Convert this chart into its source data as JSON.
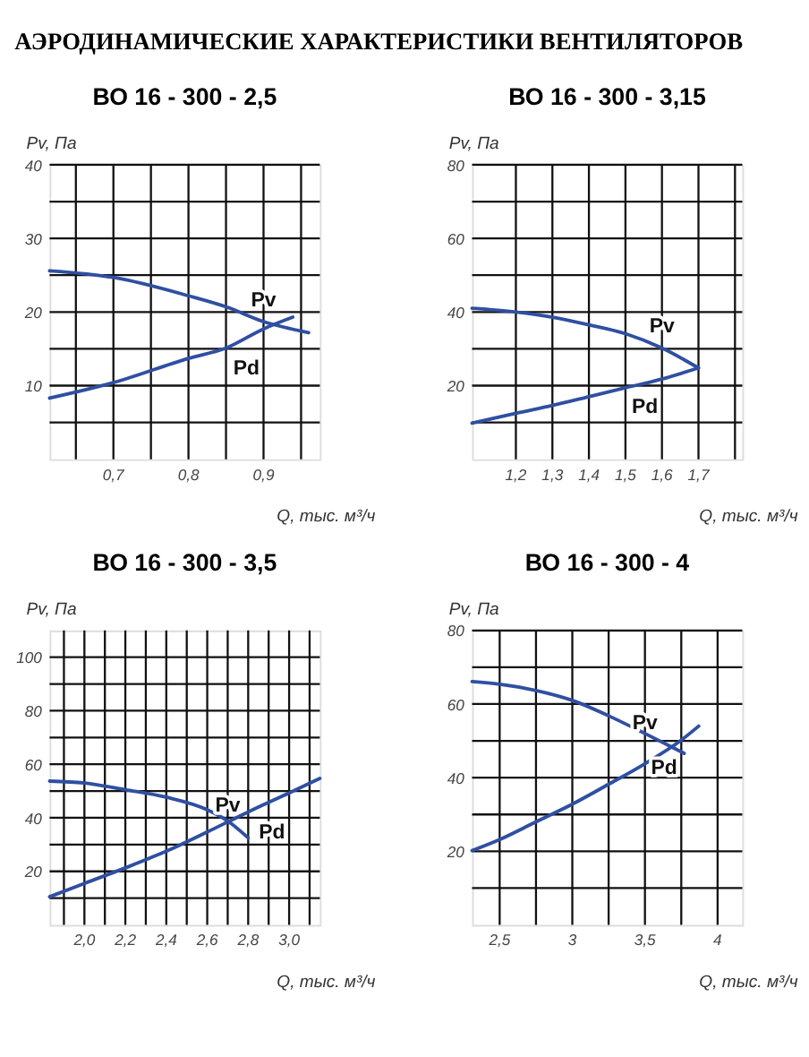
{
  "chart_data": [
    {
      "type": "line",
      "title": "ВО 16 - 300 - 2,5",
      "xlabel": "Q, тыс. м³/ч",
      "ylabel": "Pv, Па",
      "grid": true,
      "legend": false,
      "marker": "none",
      "line_style": "solid",
      "xlim": [
        0.615,
        0.975
      ],
      "ylim": [
        0,
        40
      ],
      "xticks": [
        {
          "value": 0.65,
          "label": null
        },
        {
          "value": 0.7,
          "label": "0,7"
        },
        {
          "value": 0.75,
          "label": null
        },
        {
          "value": 0.8,
          "label": "0,8"
        },
        {
          "value": 0.85,
          "label": null
        },
        {
          "value": 0.9,
          "label": "0,9"
        },
        {
          "value": 0.95,
          "label": null
        }
      ],
      "yticks": [
        {
          "value": 5,
          "label": null
        },
        10,
        {
          "value": 15,
          "label": null
        },
        20,
        {
          "value": 25,
          "label": null
        },
        30,
        {
          "value": 35,
          "label": null
        },
        40
      ],
      "series": [
        {
          "name": "Pv",
          "color": "#2f4fa2",
          "x": [
            0.615,
            0.7,
            0.8,
            0.85,
            0.9,
            0.96
          ],
          "values": [
            25.6,
            24.7,
            22.2,
            20.7,
            18.7,
            17.2
          ]
        },
        {
          "name": "Pd",
          "color": "#2f4fa2",
          "x": [
            0.615,
            0.7,
            0.8,
            0.85,
            0.9,
            0.939
          ],
          "values": [
            8.3,
            10.4,
            13.7,
            15.1,
            17.7,
            19.3
          ]
        }
      ],
      "annotations": [
        "АЭРОДИНАМИЧЕСКИЕ ХАРАКТЕРИСТИКИ ВЕНТИЛЯТОРОВ"
      ]
    },
    {
      "type": "line",
      "title": "ВО 16 - 300 - 3,15",
      "xlabel": "Q, тыс. м³/ч",
      "ylabel": "Pv, Па",
      "grid": true,
      "legend": false,
      "marker": "none",
      "line_style": "solid",
      "xlim": [
        1.08,
        1.82
      ],
      "ylim": [
        0,
        80
      ],
      "xticks": [
        {
          "value": 1.2,
          "label": "1,2"
        },
        {
          "value": 1.3,
          "label": "1,3"
        },
        {
          "value": 1.4,
          "label": "1,4"
        },
        {
          "value": 1.5,
          "label": "1,5"
        },
        {
          "value": 1.6,
          "label": "1,6"
        },
        {
          "value": 1.7,
          "label": "1,7"
        },
        {
          "value": 1.8,
          "label": null
        }
      ],
      "yticks": [
        {
          "value": 10,
          "label": null
        },
        20,
        {
          "value": 30,
          "label": null
        },
        40,
        {
          "value": 50,
          "label": null
        },
        60,
        {
          "value": 70,
          "label": null
        },
        80
      ],
      "series": [
        {
          "name": "Pv",
          "color": "#2f4fa2",
          "x": [
            1.08,
            1.2,
            1.3,
            1.4,
            1.5,
            1.6,
            1.7
          ],
          "values": [
            41,
            40,
            38.6,
            36.5,
            34.1,
            30.2,
            24.8
          ]
        },
        {
          "name": "Pd",
          "color": "#2f4fa2",
          "x": [
            1.08,
            1.2,
            1.3,
            1.4,
            1.5,
            1.6,
            1.7
          ],
          "values": [
            9.8,
            12.5,
            14.6,
            17,
            19.4,
            21.8,
            24.8
          ]
        }
      ]
    },
    {
      "type": "line",
      "title": "ВО 16 - 300 - 3,5",
      "xlabel": "Q, тыс. м³/ч",
      "ylabel": "Pv, Па",
      "grid": true,
      "legend": false,
      "marker": "none",
      "line_style": "solid",
      "xlim": [
        1.83,
        3.15
      ],
      "ylim": [
        0,
        110
      ],
      "xticks": [
        {
          "value": 1.9,
          "label": null
        },
        {
          "value": 2.0,
          "label": "2,0"
        },
        {
          "value": 2.1,
          "label": null
        },
        {
          "value": 2.2,
          "label": "2,2"
        },
        {
          "value": 2.3,
          "label": null
        },
        {
          "value": 2.4,
          "label": "2,4"
        },
        {
          "value": 2.5,
          "label": null
        },
        {
          "value": 2.6,
          "label": "2,6"
        },
        {
          "value": 2.7,
          "label": null
        },
        {
          "value": 2.8,
          "label": "2,8"
        },
        {
          "value": 2.9,
          "label": null
        },
        {
          "value": 3.0,
          "label": "3,0"
        },
        {
          "value": 3.1,
          "label": null
        }
      ],
      "yticks": [
        {
          "value": 10,
          "label": null
        },
        20,
        {
          "value": 30,
          "label": null
        },
        40,
        {
          "value": 50,
          "label": null
        },
        60,
        {
          "value": 70,
          "label": null
        },
        80,
        {
          "value": 90,
          "label": null
        },
        100
      ],
      "series": [
        {
          "name": "Pv",
          "color": "#2f4fa2",
          "x": [
            1.83,
            2.0,
            2.2,
            2.4,
            2.6,
            2.7,
            2.8
          ],
          "values": [
            53.7,
            53,
            50.5,
            47.7,
            43,
            38.8,
            32.5
          ]
        },
        {
          "name": "Pd",
          "color": "#2f4fa2",
          "x": [
            1.83,
            2.0,
            2.2,
            2.4,
            2.6,
            2.8,
            3.0,
            3.15
          ],
          "values": [
            10.5,
            15.5,
            21.3,
            27.5,
            34.7,
            42.2,
            49.3,
            54.7
          ]
        }
      ]
    },
    {
      "type": "line",
      "title": "ВО 16 - 300 - 4",
      "xlabel": "Q, тыс. м³/ч",
      "ylabel": "Pv, Па",
      "grid": true,
      "legend": false,
      "marker": "none",
      "line_style": "solid",
      "xlim": [
        2.31,
        4.17
      ],
      "ylim": [
        0,
        80
      ],
      "xticks": [
        {
          "value": 2.5,
          "label": "2,5"
        },
        {
          "value": 2.75,
          "label": null
        },
        {
          "value": 3,
          "label": "3"
        },
        {
          "value": 3.25,
          "label": null
        },
        {
          "value": 3.5,
          "label": "3,5"
        },
        {
          "value": 3.75,
          "label": null
        },
        {
          "value": 4,
          "label": "4"
        }
      ],
      "yticks": [
        {
          "value": 10,
          "label": null
        },
        20,
        {
          "value": 30,
          "label": null
        },
        40,
        {
          "value": 50,
          "label": null
        },
        60,
        {
          "value": 70,
          "label": null
        },
        80
      ],
      "series": [
        {
          "name": "Pv",
          "color": "#2f4fa2",
          "x": [
            2.31,
            2.5,
            2.75,
            3.0,
            3.25,
            3.5,
            3.77
          ],
          "values": [
            66.1,
            65.4,
            63.7,
            61,
            56.8,
            52,
            46.6
          ]
        },
        {
          "name": "Pd",
          "color": "#2f4fa2",
          "x": [
            2.31,
            2.5,
            2.75,
            3.0,
            3.25,
            3.5,
            3.75,
            3.87
          ],
          "values": [
            20.2,
            23.2,
            28,
            32.8,
            38.2,
            43.8,
            50.2,
            54
          ]
        }
      ]
    }
  ]
}
